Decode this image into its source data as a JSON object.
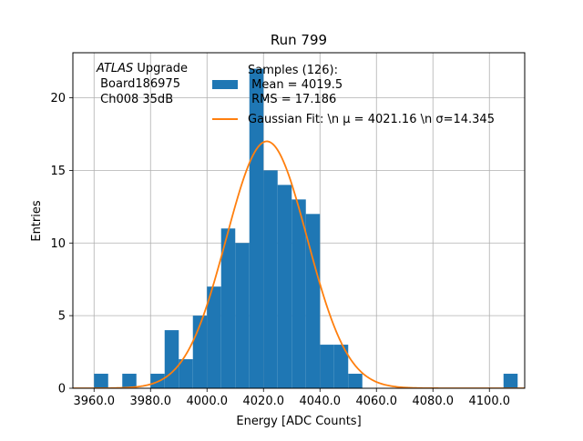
{
  "chart_data": {
    "type": "bar",
    "title": "Run 799",
    "xlabel": "Energy [ADC Counts]",
    "ylabel": "Entries",
    "xlim": [
      3952.5,
      4112.5
    ],
    "ylim": [
      0,
      23.1
    ],
    "xticks": [
      3960,
      3980,
      4000,
      4020,
      4040,
      4060,
      4080,
      4100
    ],
    "xtick_labels": [
      "3960.0",
      "3980.0",
      "4000.0",
      "4020.0",
      "4040.0",
      "4060.0",
      "4080.0",
      "4100.0"
    ],
    "yticks": [
      0,
      5,
      10,
      15,
      20
    ],
    "ytick_labels": [
      "0",
      "5",
      "10",
      "15",
      "20"
    ],
    "grid": true,
    "histogram": {
      "bin_width": 5,
      "bin_start": 3960,
      "counts": [
        1,
        0,
        1,
        0,
        1,
        4,
        2,
        5,
        7,
        11,
        10,
        22,
        15,
        14,
        13,
        12,
        3,
        3,
        1,
        0,
        0,
        0,
        0,
        0,
        0,
        0,
        0,
        0,
        0,
        1
      ],
      "color": "#1f77b4"
    },
    "fit": {
      "amplitude": 17.0,
      "mu": 4021.16,
      "sigma": 14.345,
      "color": "#ff7f0e"
    },
    "legend": {
      "placement": "top-right",
      "entries": [
        {
          "lines": [
            "Samples (126):",
            " Mean = 4019.5",
            " RMS = 17.186"
          ],
          "kind": "patch",
          "color": "#1f77b4"
        },
        {
          "lines": [
            "Gaussian Fit: \\n μ = 4021.16 \\n σ=14.345"
          ],
          "kind": "line",
          "color": "#ff7f0e"
        }
      ]
    },
    "annotation": {
      "italic": "ATLAS",
      "rest": " Upgrade",
      "line2": " Board186975",
      "line3": " Ch008 35dB"
    }
  }
}
